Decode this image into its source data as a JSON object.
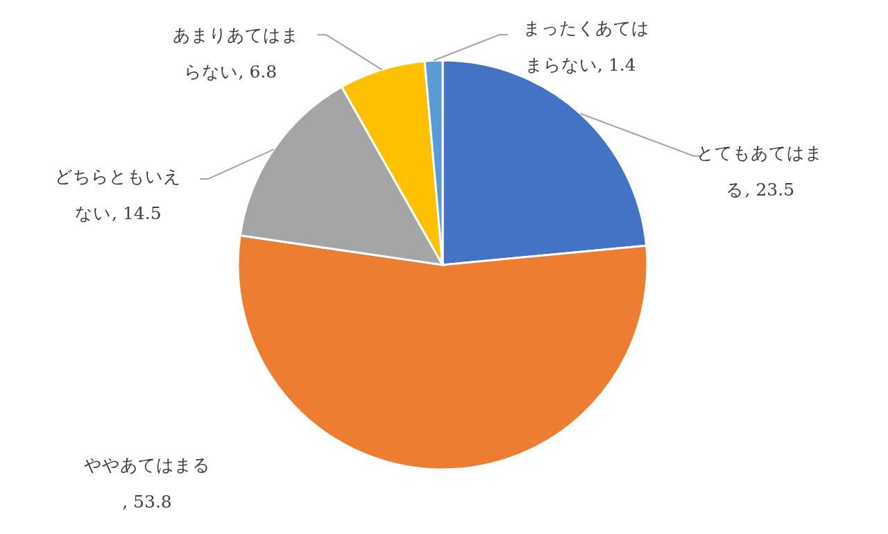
{
  "chart_data": {
    "type": "pie",
    "categories": [
      "とてもあてはまる",
      "ややあてはまる",
      "どちらともいえない",
      "あまりあてはまらない",
      "まったくあてはまらない"
    ],
    "values": [
      23.5,
      53.8,
      14.5,
      6.8,
      1.4
    ],
    "colors": [
      "#4472c4",
      "#ed7d31",
      "#a5a5a5",
      "#ffc000",
      "#5b9bd5"
    ],
    "value_labels": [
      ", 23.5",
      ", 53.8",
      ", 14.5",
      ", 6.8",
      ", 1.4"
    ]
  }
}
